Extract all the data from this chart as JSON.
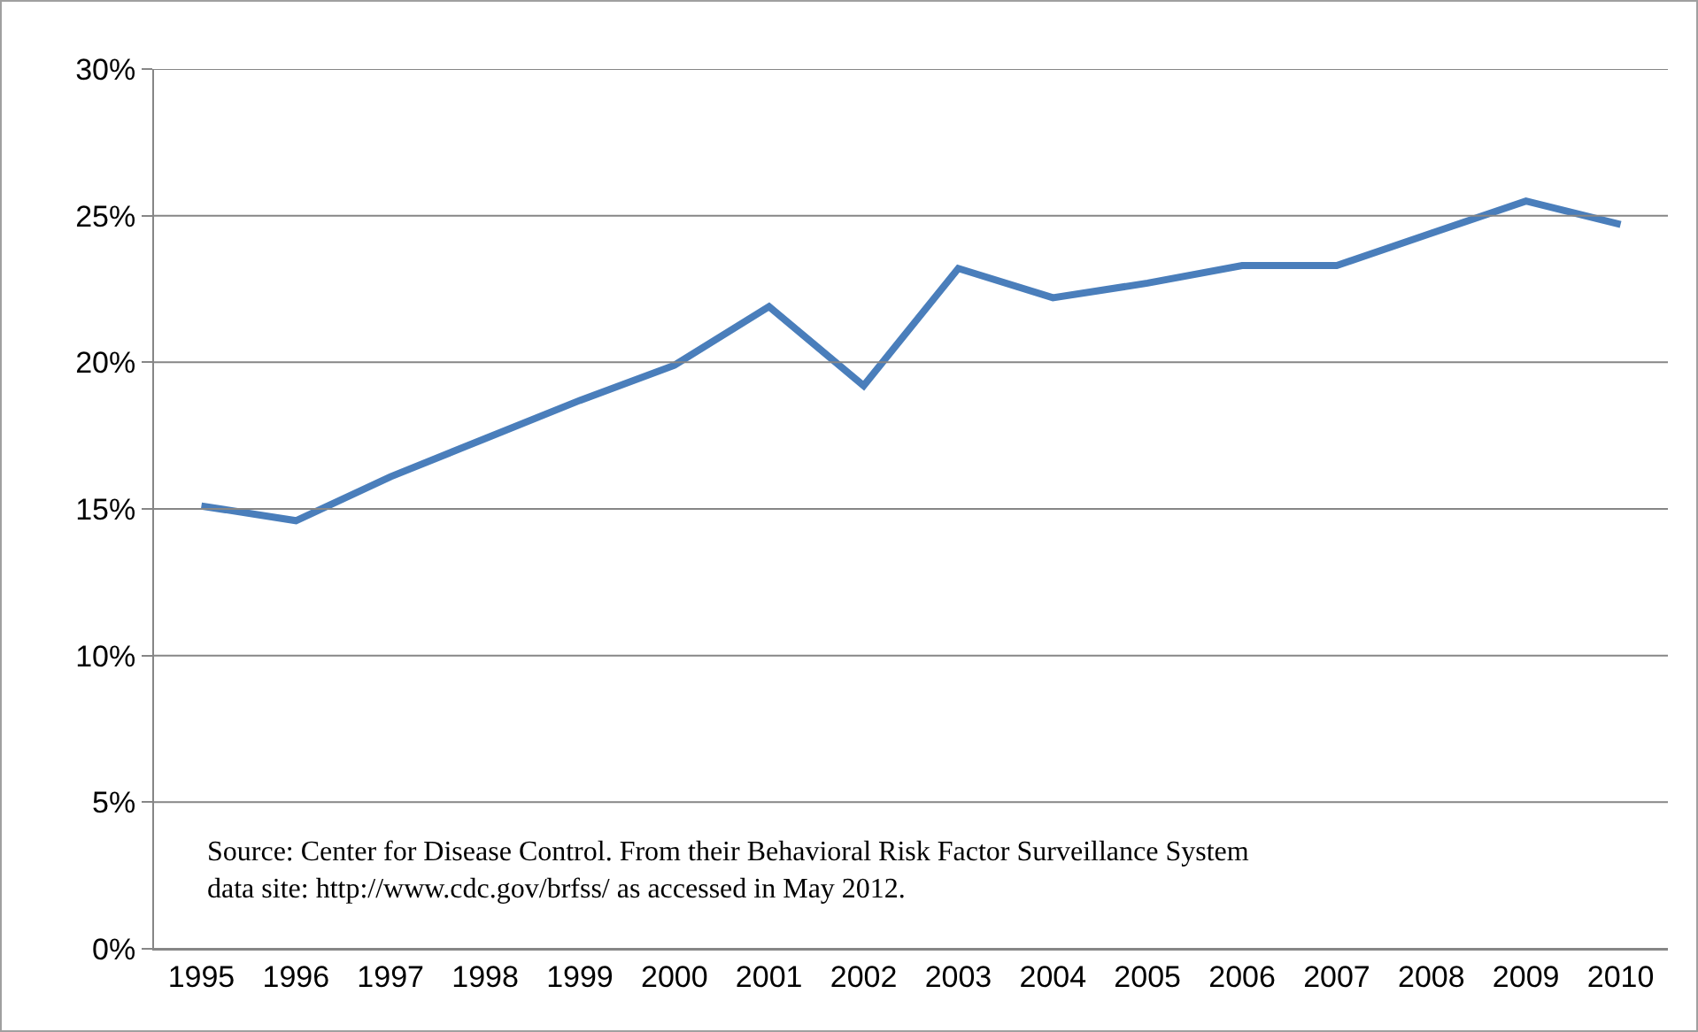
{
  "chart_data": {
    "type": "line",
    "categories": [
      "1995",
      "1996",
      "1997",
      "1998",
      "1999",
      "2000",
      "2001",
      "2002",
      "2003",
      "2004",
      "2005",
      "2006",
      "2007",
      "2008",
      "2009",
      "2010"
    ],
    "series": [
      {
        "color": "#4a7ebb",
        "values": [
          15.1,
          14.6,
          16.1,
          17.4,
          18.7,
          19.9,
          21.9,
          19.2,
          23.2,
          22.2,
          22.7,
          23.3,
          23.3,
          24.4,
          25.5,
          24.7
        ]
      }
    ],
    "ylim": [
      0,
      30
    ],
    "yticks": [
      {
        "value": 0,
        "label": "0%"
      },
      {
        "value": 5,
        "label": "5%"
      },
      {
        "value": 10,
        "label": "10%"
      },
      {
        "value": 15,
        "label": "15%"
      },
      {
        "value": 20,
        "label": "20%"
      },
      {
        "value": 25,
        "label": "25%"
      },
      {
        "value": 30,
        "label": "30%"
      }
    ],
    "grid": "y",
    "marker": "none",
    "line_style": "solid",
    "annotations": [
      "Source: Center for Disease Control. From their Behavioral Risk Factor Surveillance System\ndata site: http://www.cdc.gov/brfss/ as accessed in May 2012."
    ]
  }
}
